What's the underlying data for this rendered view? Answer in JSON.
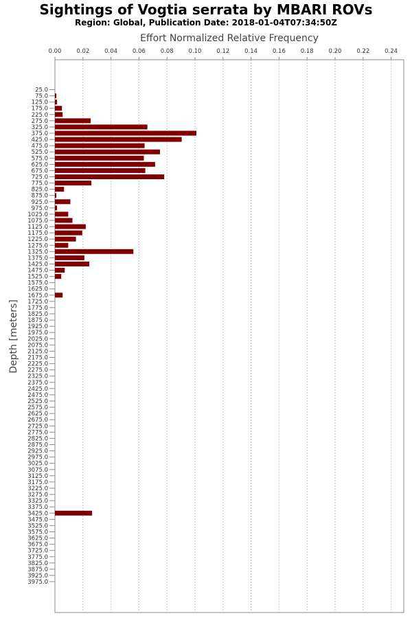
{
  "header": {
    "title": "Sightings of Vogtia serrata by MBARI ROVs",
    "subtitle": "Region: Global, Publication Date: 2018-01-04T07:34:50Z"
  },
  "chart_data": {
    "type": "bar",
    "orientation": "horizontal",
    "title": "Sightings of Vogtia serrata by MBARI ROVs",
    "subtitle": "Region: Global, Publication Date: 2018-01-04T07:34:50Z",
    "xlabel": "Effort Normalized Relative Frequency",
    "ylabel": "Depth [meters]",
    "xlim": [
      0,
      0.25
    ],
    "x_ticks": [
      "0.00",
      "0.02",
      "0.04",
      "0.06",
      "0.08",
      "0.10",
      "0.12",
      "0.14",
      "0.16",
      "0.18",
      "0.20",
      "0.22",
      "0.24"
    ],
    "grid": true,
    "bar_color": "#800000",
    "categories": [
      "25.0",
      "75.0",
      "125.0",
      "175.0",
      "225.0",
      "275.0",
      "325.0",
      "375.0",
      "425.0",
      "475.0",
      "525.0",
      "575.0",
      "625.0",
      "675.0",
      "725.0",
      "775.0",
      "825.0",
      "875.0",
      "925.0",
      "975.0",
      "1025.0",
      "1075.0",
      "1125.0",
      "1175.0",
      "1225.0",
      "1275.0",
      "1325.0",
      "1375.0",
      "1425.0",
      "1475.0",
      "1525.0",
      "1575.0",
      "1625.0",
      "1675.0",
      "1725.0",
      "1775.0",
      "1825.0",
      "1875.0",
      "1925.0",
      "1975.0",
      "2025.0",
      "2075.0",
      "2125.0",
      "2175.0",
      "2225.0",
      "2275.0",
      "2325.0",
      "2375.0",
      "2425.0",
      "2475.0",
      "2525.0",
      "2575.0",
      "2625.0",
      "2675.0",
      "2725.0",
      "2775.0",
      "2825.0",
      "2875.0",
      "2925.0",
      "2975.0",
      "3025.0",
      "3075.0",
      "3125.0",
      "3175.0",
      "3225.0",
      "3275.0",
      "3325.0",
      "3375.0",
      "3425.0",
      "3475.0",
      "3525.0",
      "3575.0",
      "3625.0",
      "3675.0",
      "3725.0",
      "3775.0",
      "3825.0",
      "3875.0",
      "3925.0",
      "3975.0"
    ],
    "values": [
      0,
      0.001,
      0.0015,
      0.005,
      0.0055,
      0.0255,
      0.066,
      0.101,
      0.0905,
      0.064,
      0.075,
      0.0635,
      0.0715,
      0.0645,
      0.078,
      0.026,
      0.0065,
      0.001,
      0.011,
      0.0015,
      0.0095,
      0.0125,
      0.022,
      0.0195,
      0.015,
      0.0095,
      0.056,
      0.021,
      0.0245,
      0.007,
      0.0045,
      0,
      0,
      0.0055,
      0,
      0,
      0,
      0,
      0,
      0,
      0,
      0,
      0,
      0,
      0,
      0,
      0,
      0,
      0,
      0,
      0,
      0,
      0,
      0,
      0,
      0,
      0,
      0,
      0,
      0,
      0,
      0,
      0,
      0,
      0,
      0,
      0,
      0,
      0.0265,
      0,
      0,
      0,
      0,
      0,
      0,
      0,
      0,
      0,
      0,
      0
    ]
  }
}
